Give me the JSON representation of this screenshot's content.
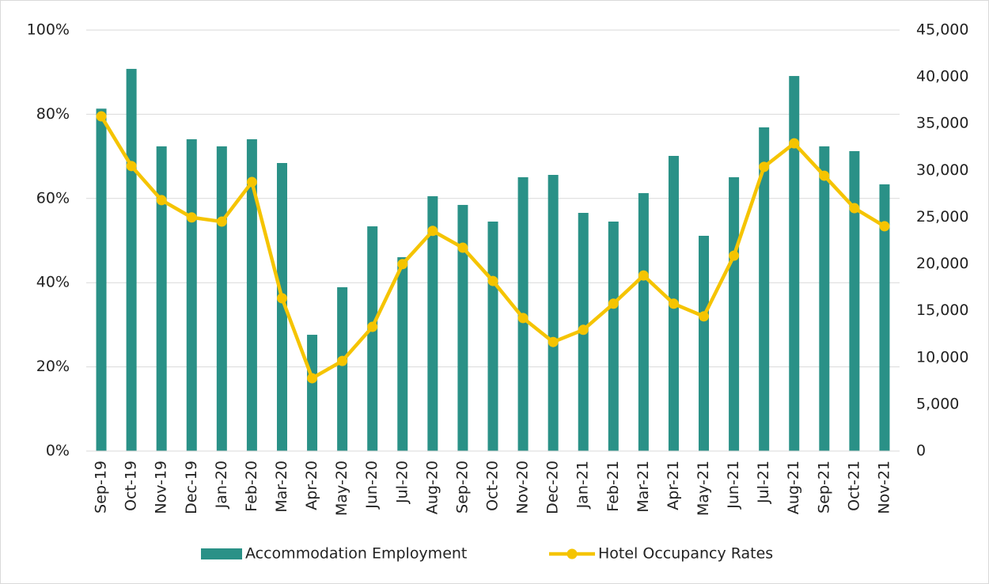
{
  "chart_data": {
    "type": "bar_line",
    "categories": [
      "Sep-19",
      "Oct-19",
      "Nov-19",
      "Dec-19",
      "Jan-20",
      "Feb-20",
      "Mar-20",
      "Apr-20",
      "May-20",
      "Jun-20",
      "Jul-20",
      "Aug-20",
      "Sep-20",
      "Oct-20",
      "Nov-20",
      "Dec-20",
      "Jan-21",
      "Feb-21",
      "Mar-21",
      "Apr-21",
      "May-21",
      "Jun-21",
      "Jul-21",
      "Aug-21",
      "Sep-21",
      "Oct-21",
      "Nov-21"
    ],
    "series": [
      {
        "name": "Accommodation Employment",
        "type": "bar",
        "axis": "y2",
        "color": "#2a9187",
        "values": [
          36600,
          40850,
          32570,
          33330,
          32570,
          33330,
          30790,
          12430,
          17510,
          24020,
          20720,
          27240,
          26310,
          24530,
          29270,
          29520,
          25460,
          24530,
          27570,
          31550,
          23010,
          29270,
          34600,
          40090,
          32570,
          32060,
          28510
        ]
      },
      {
        "name": "Hotel Occupancy Rates",
        "type": "line",
        "axis": "y",
        "color": "#f5c400",
        "values": [
          79.5,
          67.7,
          59.6,
          55.5,
          54.5,
          63.9,
          36.3,
          17.3,
          21.4,
          29.5,
          44.4,
          52.3,
          48.3,
          40.4,
          31.6,
          25.9,
          28.8,
          35.0,
          41.7,
          35.0,
          32.0,
          46.4,
          67.5,
          73.1,
          65.4,
          57.7,
          53.4
        ]
      }
    ],
    "ylim": [
      0,
      100
    ],
    "yticks": [
      {
        "value": 0,
        "label": "0%"
      },
      {
        "value": 20,
        "label": "20%"
      },
      {
        "value": 40,
        "label": "40%"
      },
      {
        "value": 60,
        "label": "60%"
      },
      {
        "value": 80,
        "label": "80%"
      },
      {
        "value": 100,
        "label": "100%"
      }
    ],
    "y2lim": [
      0,
      45000
    ],
    "y2ticks": [
      0,
      {
        "value": 5000,
        "label": "5,000"
      },
      {
        "value": 10000,
        "label": "10,000"
      },
      {
        "value": 15000,
        "label": "15,000"
      },
      {
        "value": 20000,
        "label": "20,000"
      },
      {
        "value": 25000,
        "label": "25,000"
      },
      {
        "value": 30000,
        "label": "30,000"
      },
      {
        "value": 35000,
        "label": "35,000"
      },
      {
        "value": 40000,
        "label": "40,000"
      },
      {
        "value": 45000,
        "label": "45,000"
      }
    ],
    "grid": true,
    "legend": "bottom"
  }
}
